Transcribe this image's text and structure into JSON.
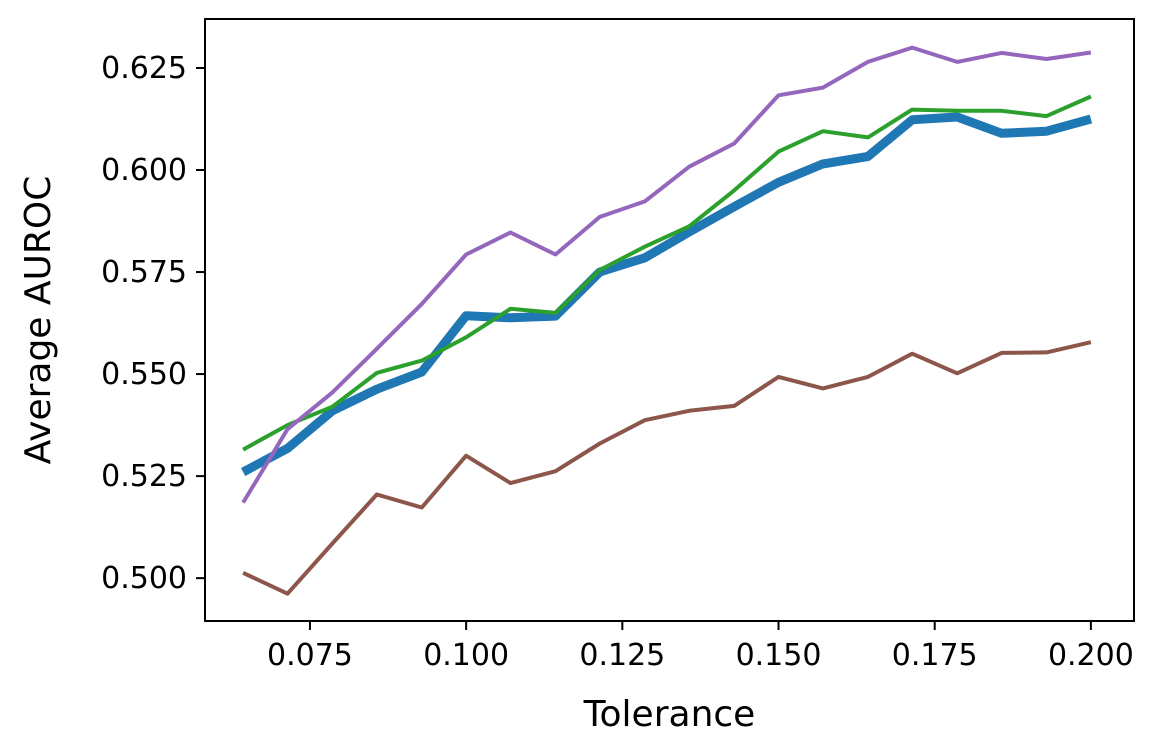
{
  "chart_data": {
    "type": "line",
    "title": "",
    "xlabel": "Tolerance",
    "ylabel": "Average AUROC",
    "xlim": [
      0.0582,
      0.2069
    ],
    "ylim": [
      0.4895,
      0.637
    ],
    "xticks": [
      0.075,
      0.1,
      0.125,
      0.15,
      0.175,
      0.2
    ],
    "xtick_labels": [
      "0.075",
      "0.100",
      "0.125",
      "0.150",
      "0.175",
      "0.200"
    ],
    "yticks": [
      0.5,
      0.525,
      0.55,
      0.575,
      0.6,
      0.625
    ],
    "ytick_labels": [
      "0.500",
      "0.525",
      "0.550",
      "0.575",
      "0.600",
      "0.625"
    ],
    "grid": false,
    "legend": "none",
    "x": [
      0.0643,
      0.0714,
      0.0786,
      0.0857,
      0.0929,
      0.1,
      0.1071,
      0.1143,
      0.1214,
      0.1286,
      0.1357,
      0.1429,
      0.15,
      0.1571,
      0.1643,
      0.1714,
      0.1786,
      0.1857,
      0.1929,
      0.2
    ],
    "series": [
      {
        "color": "#1f77b4",
        "line_width": 9,
        "values": [
          0.526,
          0.5318,
          0.541,
          0.5463,
          0.5505,
          0.5643,
          0.5638,
          0.5642,
          0.575,
          0.5785,
          0.5848,
          0.591,
          0.597,
          0.6015,
          0.6033,
          0.6123,
          0.613,
          0.609,
          0.6095,
          0.6125
        ]
      },
      {
        "color": "#2ca02c",
        "line_width": 4,
        "values": [
          0.5315,
          0.5375,
          0.542,
          0.5503,
          0.5533,
          0.559,
          0.566,
          0.565,
          0.5755,
          0.5812,
          0.5862,
          0.595,
          0.6045,
          0.6095,
          0.608,
          0.6148,
          0.6145,
          0.6145,
          0.6132,
          0.618
        ]
      },
      {
        "color": "#9467bd",
        "line_width": 4,
        "values": [
          0.5185,
          0.5365,
          0.5455,
          0.5562,
          0.5672,
          0.5793,
          0.5847,
          0.5793,
          0.5885,
          0.5923,
          0.6008,
          0.6065,
          0.6183,
          0.6202,
          0.6265,
          0.63,
          0.6265,
          0.6287,
          0.6272,
          0.6288
        ]
      },
      {
        "color": "#8c564b",
        "line_width": 4,
        "values": [
          0.5013,
          0.4962,
          0.5085,
          0.5205,
          0.5173,
          0.53,
          0.5233,
          0.5262,
          0.533,
          0.5387,
          0.541,
          0.5422,
          0.5493,
          0.5465,
          0.5493,
          0.555,
          0.5502,
          0.5552,
          0.5553,
          0.5578
        ]
      }
    ]
  }
}
